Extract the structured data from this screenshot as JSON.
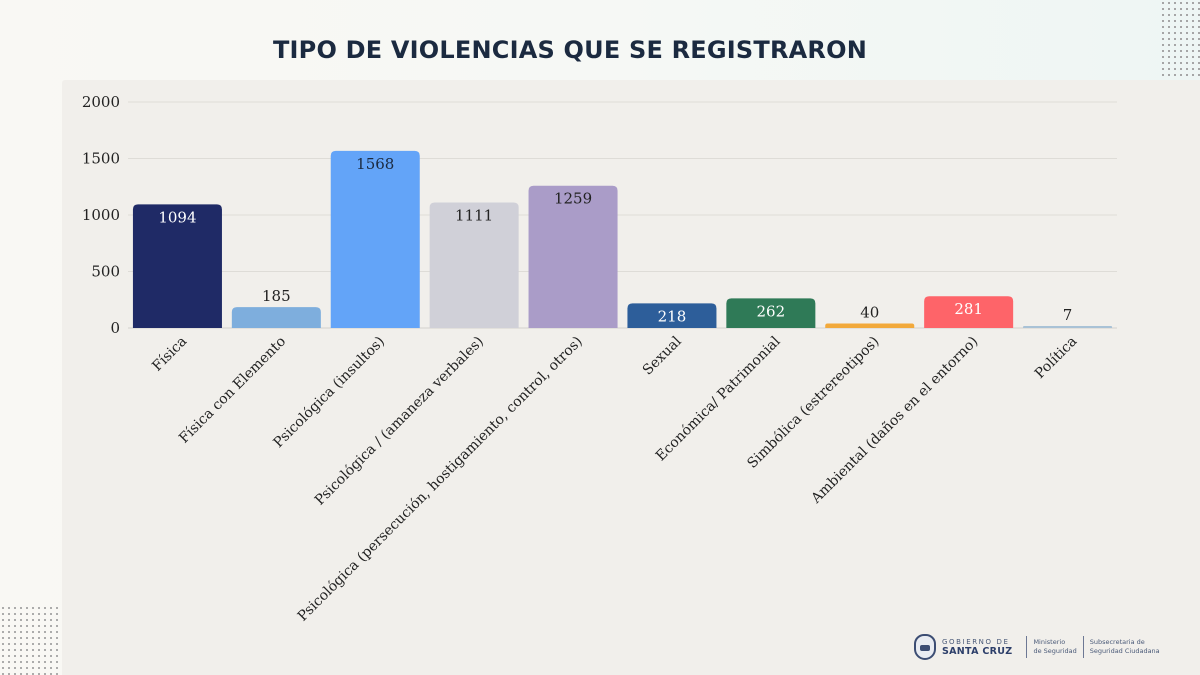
{
  "header": {
    "title": "TIPO DE VIOLENCIAS QUE SE REGISTRARON"
  },
  "chart_data": {
    "type": "bar",
    "title": "TIPO DE VIOLENCIAS QUE SE REGISTRARON",
    "xlabel": "",
    "ylabel": "",
    "ylim": [
      0,
      2000
    ],
    "yticks": [
      0,
      500,
      1000,
      1500,
      2000
    ],
    "grid": true,
    "legend": "none",
    "categories": [
      "Física",
      "Física con Elemento",
      "Psicológica (insultos)",
      "Psicológica / (amaneza verbales)",
      "Psicológica (persecución, hostigamiento, control, otros)",
      "Sexual",
      "Económica/ Patrimonial",
      "Simbólica (estrereotipos)",
      "Ambiental (daños en el entorno)",
      "Política"
    ],
    "values": [
      1094,
      185,
      1568,
      1111,
      1259,
      218,
      262,
      40,
      281,
      7
    ],
    "colors": [
      "#1f2a66",
      "#7eaedd",
      "#63a4f8",
      "#d0d0d8",
      "#aa9cc8",
      "#2d5e9a",
      "#2f7a57",
      "#f2a93b",
      "#fe6469",
      "#a9c2d6"
    ],
    "label_colors": [
      "#ffffff",
      "#222222",
      "#1b2a40",
      "#222222",
      "#222222",
      "#ffffff",
      "#ffffff",
      "#222222",
      "#ffffff",
      "#222222"
    ]
  },
  "footer": {
    "gov_top": "GOBIERNO DE",
    "gov_main": "SANTA CRUZ",
    "ministry_line1": "Ministerio",
    "ministry_line2": "de Seguridad",
    "sub_line1": "Subsecretaria de",
    "sub_line2": "Seguridad Ciudadana"
  }
}
